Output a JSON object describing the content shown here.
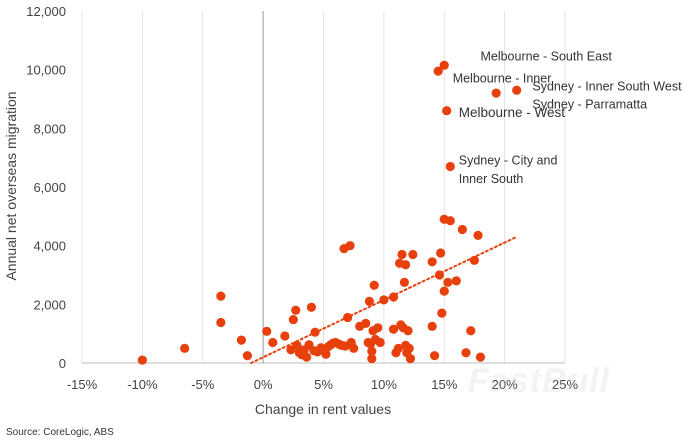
{
  "chart_data": {
    "type": "scatter",
    "title": "",
    "xlabel": "Change in rent values",
    "ylabel": "Annual net overseas migration",
    "xlim": [
      -0.15,
      0.25
    ],
    "ylim": [
      0,
      12000
    ],
    "x_ticks": [
      -0.15,
      -0.1,
      -0.05,
      0,
      0.05,
      0.1,
      0.15,
      0.2,
      0.25
    ],
    "x_tick_labels": [
      "-15%",
      "-10%",
      "-5%",
      "0%",
      "5%",
      "10%",
      "15%",
      "20%",
      "25%"
    ],
    "y_ticks": [
      0,
      2000,
      4000,
      6000,
      8000,
      10000,
      12000
    ],
    "y_tick_labels": [
      "0",
      "2,000",
      "4,000",
      "6,000",
      "8,000",
      "10,000",
      "12,000"
    ],
    "point_color": "#e8400c",
    "trend_color": "#e8400c",
    "grid": "vertical",
    "trendline": {
      "style": "dotted",
      "from": [
        -0.01,
        0
      ],
      "to": [
        0.21,
        4300
      ]
    },
    "points": [
      [
        -0.1,
        100
      ],
      [
        -0.065,
        500
      ],
      [
        -0.035,
        2280
      ],
      [
        -0.035,
        1380
      ],
      [
        -0.018,
        780
      ],
      [
        -0.013,
        250
      ],
      [
        0.003,
        1080
      ],
      [
        0.008,
        700
      ],
      [
        0.018,
        920
      ],
      [
        0.023,
        450
      ],
      [
        0.025,
        1480
      ],
      [
        0.027,
        1800
      ],
      [
        0.028,
        600
      ],
      [
        0.03,
        350
      ],
      [
        0.032,
        280
      ],
      [
        0.034,
        450
      ],
      [
        0.036,
        200
      ],
      [
        0.038,
        620
      ],
      [
        0.04,
        1900
      ],
      [
        0.042,
        420
      ],
      [
        0.043,
        1050
      ],
      [
        0.045,
        380
      ],
      [
        0.048,
        520
      ],
      [
        0.052,
        300
      ],
      [
        0.054,
        560
      ],
      [
        0.056,
        620
      ],
      [
        0.058,
        680
      ],
      [
        0.06,
        700
      ],
      [
        0.063,
        640
      ],
      [
        0.065,
        600
      ],
      [
        0.067,
        3900
      ],
      [
        0.068,
        580
      ],
      [
        0.07,
        1550
      ],
      [
        0.072,
        4000
      ],
      [
        0.073,
        700
      ],
      [
        0.075,
        500
      ],
      [
        0.08,
        1250
      ],
      [
        0.085,
        1350
      ],
      [
        0.087,
        700
      ],
      [
        0.088,
        2100
      ],
      [
        0.089,
        650
      ],
      [
        0.09,
        400
      ],
      [
        0.09,
        150
      ],
      [
        0.091,
        1100
      ],
      [
        0.092,
        2650
      ],
      [
        0.093,
        800
      ],
      [
        0.095,
        1200
      ],
      [
        0.097,
        700
      ],
      [
        0.1,
        2150
      ],
      [
        0.108,
        1150
      ],
      [
        0.108,
        2250
      ],
      [
        0.11,
        350
      ],
      [
        0.112,
        500
      ],
      [
        0.113,
        3400
      ],
      [
        0.114,
        1300
      ],
      [
        0.115,
        3700
      ],
      [
        0.116,
        1200
      ],
      [
        0.117,
        2750
      ],
      [
        0.118,
        600
      ],
      [
        0.119,
        350
      ],
      [
        0.12,
        1100
      ],
      [
        0.121,
        500
      ],
      [
        0.122,
        150
      ],
      [
        0.124,
        3700
      ],
      [
        0.14,
        3450
      ],
      [
        0.14,
        1250
      ],
      [
        0.142,
        250
      ],
      [
        0.146,
        3000
      ],
      [
        0.147,
        3750
      ],
      [
        0.148,
        1700
      ],
      [
        0.15,
        2450
      ],
      [
        0.15,
        4900
      ],
      [
        0.153,
        2750
      ],
      [
        0.155,
        4850
      ],
      [
        0.16,
        2800
      ],
      [
        0.165,
        4550
      ],
      [
        0.168,
        350
      ],
      [
        0.172,
        1100
      ],
      [
        0.175,
        3500
      ],
      [
        0.178,
        4350
      ],
      [
        0.18,
        200
      ],
      [
        0.118,
        3350
      ],
      [
        0.145,
        9950
      ],
      [
        0.15,
        10150
      ],
      [
        0.152,
        8600
      ],
      [
        0.155,
        6700
      ],
      [
        0.193,
        9200
      ],
      [
        0.21,
        9300
      ]
    ],
    "annotations": [
      {
        "text": "Melbourne - South East",
        "x": 0.18,
        "y": 10450,
        "size": "normal"
      },
      {
        "text": "Melbourne - Inner",
        "x": 0.157,
        "y": 9700,
        "size": "normal"
      },
      {
        "text": "Sydney - Inner South West",
        "x": 0.223,
        "y": 9420,
        "size": "normal"
      },
      {
        "text": "Sydney - Parramatta",
        "x": 0.223,
        "y": 8820,
        "size": "normal"
      },
      {
        "text": "Melbourne - West",
        "x": 0.162,
        "y": 8520,
        "size": "big"
      },
      {
        "text": "Sydney - City and",
        "x": 0.162,
        "y": 6900,
        "size": "normal"
      },
      {
        "text": "Inner South",
        "x": 0.162,
        "y": 6270,
        "size": "normal"
      }
    ]
  },
  "source": "Source: CoreLogic, ABS",
  "watermark": "FastBull"
}
